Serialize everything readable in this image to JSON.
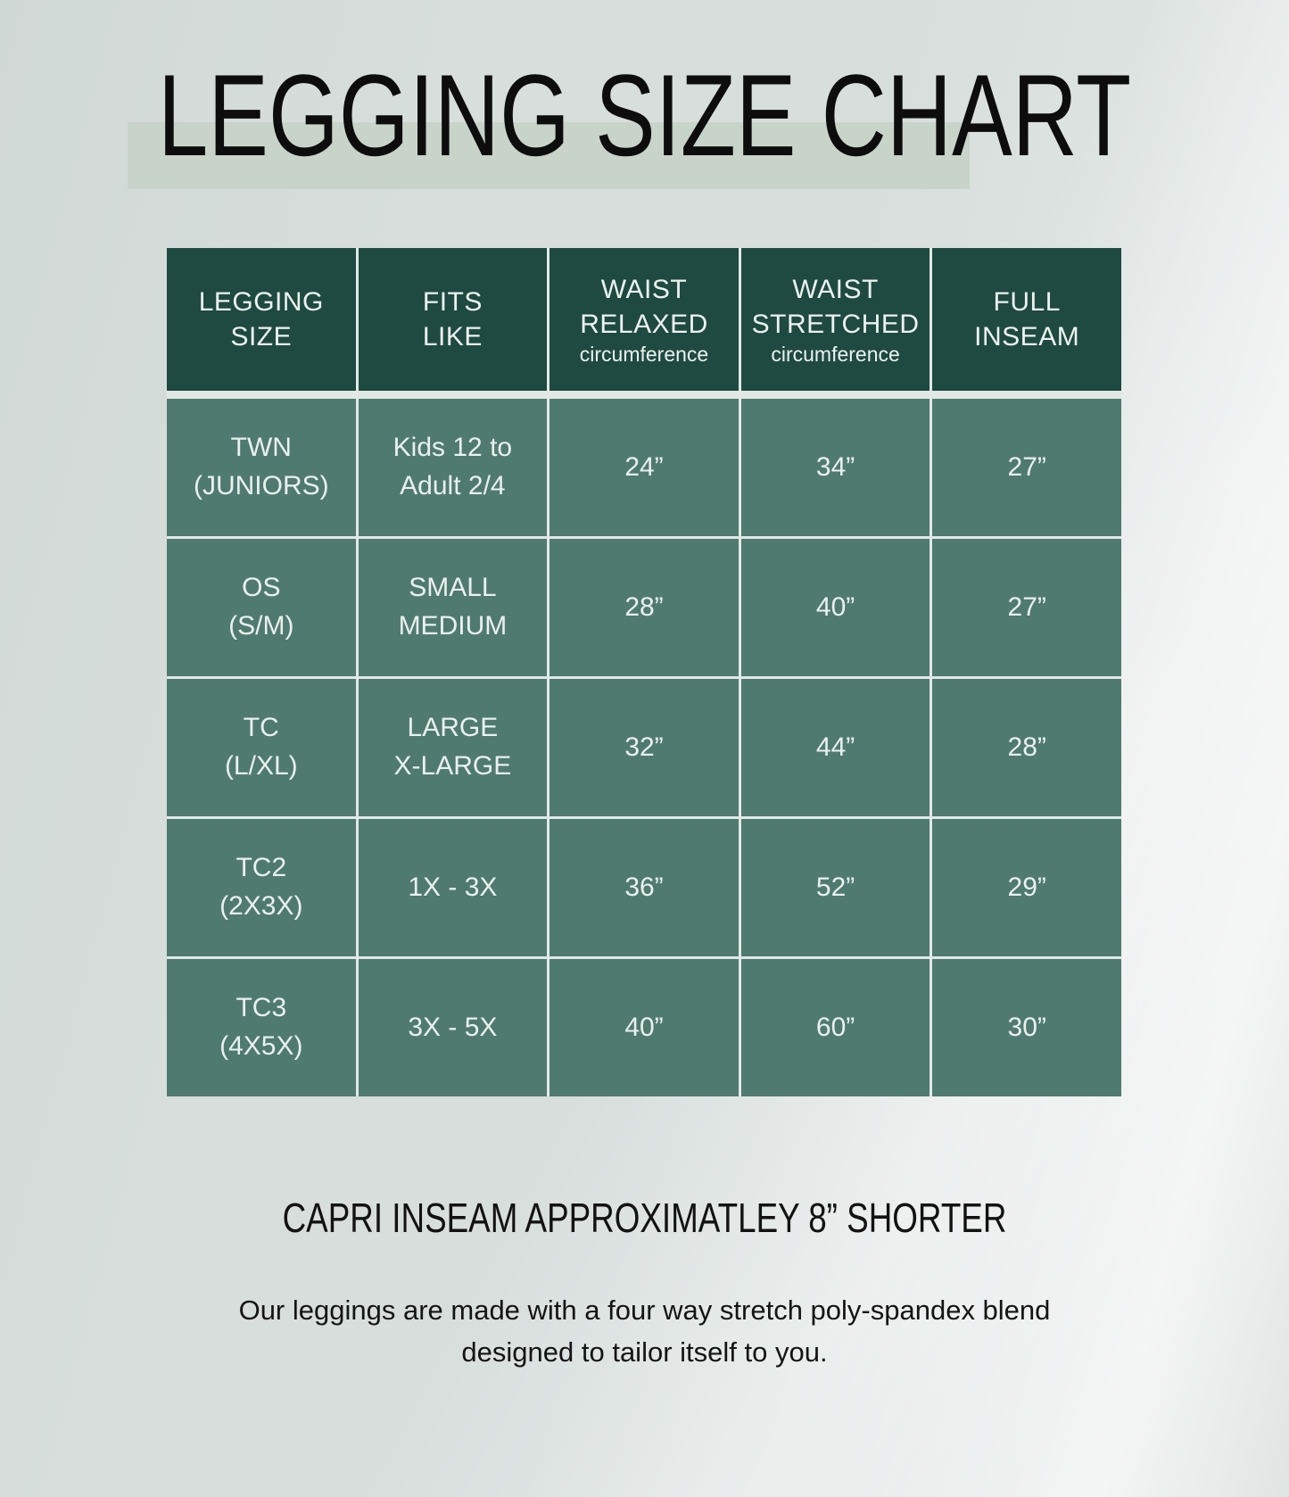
{
  "title": "LEGGING SIZE CHART",
  "table": {
    "columns": [
      {
        "lines": [
          "LEGGING",
          "SIZE"
        ]
      },
      {
        "lines": [
          "FITS",
          "LIKE"
        ]
      },
      {
        "lines": [
          "WAIST",
          "RELAXED"
        ],
        "sub": "circumference"
      },
      {
        "lines": [
          "WAIST",
          "STRETCHED"
        ],
        "sub": "circumference"
      },
      {
        "lines": [
          "FULL",
          "INSEAM"
        ]
      }
    ],
    "rows": [
      {
        "size": [
          "TWN",
          "(JUNIORS)"
        ],
        "fits": [
          "Kids 12 to",
          "Adult 2/4"
        ],
        "waist_relaxed": "24”",
        "waist_stretched": "34”",
        "full_inseam": "27”"
      },
      {
        "size": [
          "OS",
          "(S/M)"
        ],
        "fits": [
          "SMALL",
          "MEDIUM"
        ],
        "waist_relaxed": "28”",
        "waist_stretched": "40”",
        "full_inseam": "27”"
      },
      {
        "size": [
          "TC",
          "(L/XL)"
        ],
        "fits": [
          "LARGE",
          "X-LARGE"
        ],
        "waist_relaxed": "32”",
        "waist_stretched": "44”",
        "full_inseam": "28”"
      },
      {
        "size": [
          "TC2",
          "(2X3X)"
        ],
        "fits": [
          "1X - 3X"
        ],
        "waist_relaxed": "36”",
        "waist_stretched": "52”",
        "full_inseam": "29”"
      },
      {
        "size": [
          "TC3",
          "(4X5X)"
        ],
        "fits": [
          "3X - 5X"
        ],
        "waist_relaxed": "40”",
        "waist_stretched": "60”",
        "full_inseam": "30”"
      }
    ]
  },
  "footer": {
    "capri_note": "CAPRI INSEAM APPROXIMATLEY 8” SHORTER",
    "description_lines": [
      "Our leggings are made with a four way stretch poly-spandex blend",
      "designed to tailor itself to you."
    ]
  },
  "colors": {
    "header_green": "#1e4a41",
    "cell_green": "#4f7a70",
    "grid_line": "#e1e8e5",
    "title_band": "#c8d4ca",
    "background": "#d7dedc",
    "text_light": "#eaf0ed",
    "text_dark": "#0d0d0d"
  }
}
